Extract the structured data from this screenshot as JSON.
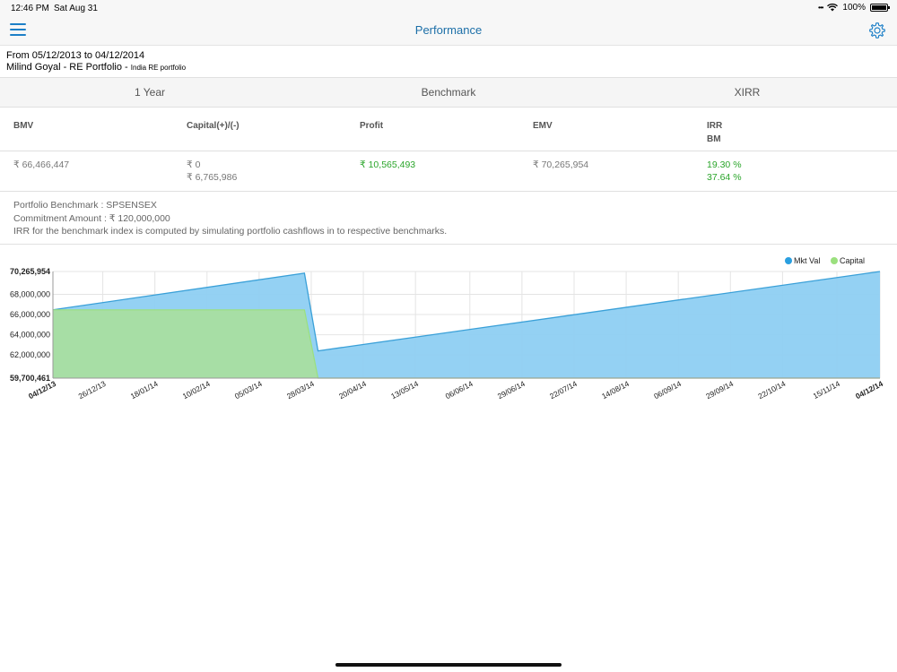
{
  "status_bar": {
    "time": "12:46 PM",
    "date": "Sat Aug 31",
    "battery": "100%"
  },
  "nav": {
    "title": "Performance"
  },
  "header": {
    "period": "From 05/12/2013 to 04/12/2014",
    "portfolio": "Milind Goyal - RE Portfolio - ",
    "portfolio_sub": "India RE portfolio"
  },
  "tabs": [
    "1 Year",
    "Benchmark",
    "XIRR"
  ],
  "metrics": {
    "headers": {
      "bmv": "BMV",
      "capital": "Capital(+)/(-)",
      "profit": "Profit",
      "emv": "EMV",
      "irr": "IRR",
      "bm": "BM"
    },
    "values": {
      "bmv": "₹ 66,466,447",
      "capital_in": "₹ 0",
      "capital_out": "₹ 6,765,986",
      "profit": "₹ 10,565,493",
      "emv": "₹ 70,265,954",
      "irr": "19.30 %",
      "bm": "37.64 %"
    }
  },
  "info": {
    "benchmark": "Portfolio Benchmark : SPSENSEX",
    "commitment": "Commitment Amount : ₹ 120,000,000",
    "note": "IRR for the benchmark index is computed by simulating portfolio cashflows in to respective benchmarks."
  },
  "colors": {
    "accent": "#1c7fc7",
    "mkt_val": "#8ecff2",
    "mkt_val_line": "#3aa0d8",
    "capital": "#a8dea0",
    "capital_dot": "#9be07e",
    "profit": "#2aa52a"
  },
  "chart_data": {
    "type": "area",
    "legend": [
      "Mkt Val",
      "Capital"
    ],
    "legend_position": "top-right",
    "ylim": [
      59700461,
      70265954
    ],
    "y_ticks": [
      "70,265,954",
      "68,000,000",
      "66,000,000",
      "64,000,000",
      "62,000,000",
      "59,700,461"
    ],
    "y_tick_values": [
      70265954,
      68000000,
      66000000,
      64000000,
      62000000,
      59700461
    ],
    "x_ticks": [
      "04/12/13",
      "26/12/13",
      "18/01/14",
      "10/02/14",
      "05/03/14",
      "28/03/14",
      "20/04/14",
      "13/05/14",
      "06/06/14",
      "29/06/14",
      "22/07/14",
      "14/08/14",
      "06/09/14",
      "29/09/14",
      "22/10/14",
      "15/11/14",
      "04/12/14"
    ],
    "x_tick_days": [
      0,
      22,
      45,
      68,
      91,
      114,
      137,
      160,
      184,
      207,
      230,
      253,
      276,
      299,
      322,
      346,
      365
    ],
    "series": [
      {
        "name": "Mkt Val",
        "x_days": [
          0,
          111,
          117,
          365
        ],
        "values": [
          66466447,
          70100000,
          62400000,
          70265954
        ]
      },
      {
        "name": "Capital",
        "x_days": [
          0,
          111,
          117,
          365
        ],
        "values": [
          66466447,
          66466447,
          59700461,
          59700461
        ]
      }
    ]
  }
}
